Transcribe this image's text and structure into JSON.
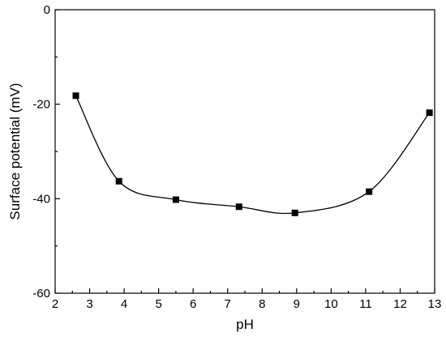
{
  "chart_data": {
    "type": "line",
    "title": "",
    "xlabel": "pH",
    "ylabel": "Surface potential (mV)",
    "xlim": [
      2,
      13
    ],
    "ylim": [
      -60,
      0
    ],
    "xticks": [
      2,
      3,
      4,
      5,
      6,
      7,
      8,
      9,
      10,
      11,
      12,
      13
    ],
    "yticks": [
      0,
      -20,
      -40,
      -60
    ],
    "y_minor_ticks": [
      -10,
      -30,
      -50
    ],
    "x_minor": true,
    "grid": false,
    "legend": "none",
    "series": [
      {
        "marker": "square",
        "smooth": true,
        "color": "#000000",
        "x": [
          2.6,
          3.85,
          5.5,
          7.33,
          8.95,
          11.1,
          12.85
        ],
        "y": [
          -18.2,
          -36.3,
          -40.2,
          -41.7,
          -43.0,
          -38.5,
          -21.8
        ]
      }
    ]
  }
}
